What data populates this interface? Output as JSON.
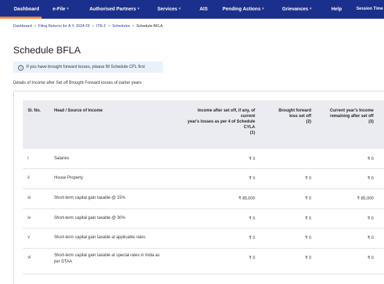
{
  "nav": {
    "items": [
      {
        "label": "Dashboard",
        "chevron": ""
      },
      {
        "label": "e-File",
        "chevron": "˅"
      },
      {
        "label": "Authorised Partners",
        "chevron": "˅"
      },
      {
        "label": "Services",
        "chevron": "˅"
      },
      {
        "label": "AIS",
        "chevron": ""
      },
      {
        "label": "Pending Actions",
        "chevron": "˅"
      },
      {
        "label": "Grievances",
        "chevron": "˅"
      },
      {
        "label": "Help",
        "chevron": ""
      },
      {
        "label": "Session Time",
        "chevron": ""
      }
    ],
    "accent": "#f28c28",
    "background": "#1b2f8c"
  },
  "breadcrumb": {
    "items": [
      "Dashboard",
      "Filing Returns for A.Y. 2024-25",
      "ITR-2",
      "Schedules"
    ],
    "current": "Schedule BFLA",
    "separator": ">"
  },
  "page": {
    "title": "Schedule BFLA",
    "info_icon": "i",
    "info_text": "If you have brought forward losses, please fill Schedule CFL first",
    "subheading": "Details of Income after Set off Brought Forward losses of earlier years"
  },
  "table": {
    "headers": {
      "sl_no": "Sl. No.",
      "head": "Head / Source of Income",
      "col1": [
        "Income after set off, if any, of",
        "current",
        "year's losses as per 4 of Schedule",
        "CYLA",
        "(1)"
      ],
      "col2": [
        "Brought forward",
        "loss set off",
        "(2)"
      ],
      "col3": [
        "Current year's Income",
        "remaining after set off",
        "(3)"
      ]
    },
    "rows": [
      {
        "sl": "i",
        "head": "Salaries",
        "c1": "₹ 0",
        "c2": "",
        "c3": "₹ 0"
      },
      {
        "sl": "ii",
        "head": "House Property",
        "c1": "₹ 0",
        "c2": "₹ 0",
        "c3": "₹ 0"
      },
      {
        "sl": "iii",
        "head": "Short-term capital gain taxable @ 15%",
        "c1": "₹ 85,000",
        "c2": "₹ 0",
        "c3": "₹ 85,000"
      },
      {
        "sl": "iv",
        "head": "Short-term capital gain taxable @ 30%",
        "c1": "₹ 0",
        "c2": "₹ 0",
        "c3": "₹ 0"
      },
      {
        "sl": "v",
        "head": "Short-term capital gain taxable at applicable rates",
        "c1": "₹ 0",
        "c2": "₹ 0",
        "c3": "₹ 0"
      },
      {
        "sl": "vi",
        "head": "Short-term capital gain taxable at special rates in India as per DTAA",
        "c1": "₹ 0",
        "c2": "₹ 0",
        "c3": "₹ 0"
      }
    ]
  }
}
